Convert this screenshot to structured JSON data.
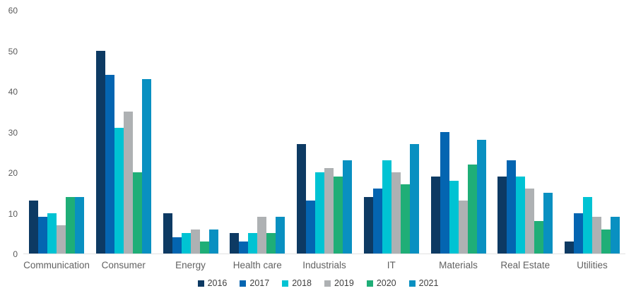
{
  "chart_data": {
    "type": "bar",
    "title": "",
    "xlabel": "",
    "ylabel": "",
    "categories": [
      "Communication",
      "Consumer",
      "Energy",
      "Health care",
      "Industrials",
      "IT",
      "Materials",
      "Real Estate",
      "Utilities"
    ],
    "series": [
      {
        "name": "2016",
        "color": "#0d3a63",
        "values": [
          13,
          50,
          10,
          5,
          27,
          14,
          19,
          19,
          3
        ]
      },
      {
        "name": "2017",
        "color": "#0465b1",
        "values": [
          9,
          44,
          4,
          3,
          13,
          16,
          30,
          23,
          10
        ]
      },
      {
        "name": "2018",
        "color": "#00c3d3",
        "values": [
          10,
          31,
          5,
          5,
          20,
          23,
          18,
          19,
          14
        ]
      },
      {
        "name": "2019",
        "color": "#aeb1b3",
        "values": [
          7,
          35,
          6,
          9,
          21,
          20,
          13,
          16,
          9
        ]
      },
      {
        "name": "2020",
        "color": "#1fae77",
        "values": [
          14,
          20,
          3,
          5,
          19,
          17,
          22,
          8,
          6
        ]
      },
      {
        "name": "2021",
        "color": "#0990c1",
        "values": [
          14,
          43,
          6,
          9,
          23,
          27,
          28,
          15,
          9
        ]
      }
    ],
    "ylim": [
      0,
      60
    ],
    "yticks": [
      0,
      10,
      20,
      30,
      40,
      50,
      60
    ],
    "grid": false,
    "legend_position": "bottom",
    "axis_line_color": "#e2e2e2",
    "tick_text_color": "#595959",
    "category_text_color": "#616161",
    "legend_text_color": "#404040"
  }
}
